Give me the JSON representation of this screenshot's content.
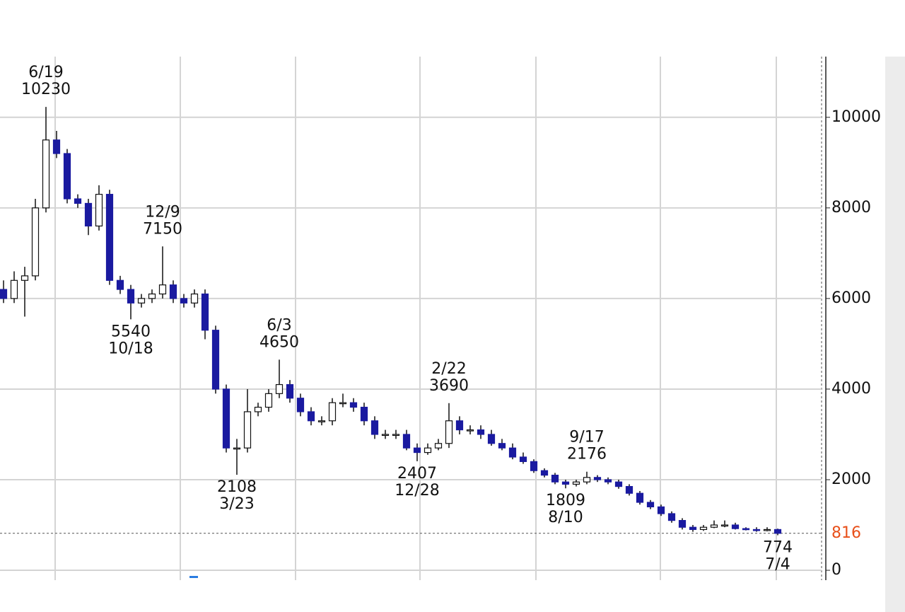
{
  "chart_data": {
    "type": "candlestick",
    "open": [
      6200,
      6000,
      6400,
      6500,
      8000,
      9500,
      9200,
      8200,
      8100,
      7600,
      8300,
      6400,
      6200,
      5900,
      6000,
      6100,
      6300,
      6000,
      5900,
      6100,
      5300,
      4000,
      2700,
      2700,
      3500,
      3600,
      3900,
      4100,
      3800,
      3500,
      3300,
      3300,
      3700,
      3700,
      3600,
      3300,
      3000,
      3000,
      3000,
      2700,
      2600,
      2700,
      2800,
      3300,
      3100,
      3100,
      3000,
      2800,
      2700,
      2500,
      2400,
      2200,
      2100,
      1950,
      1900,
      1950,
      2050,
      2000,
      1950,
      1850,
      1700,
      1500,
      1400,
      1250,
      1100,
      950,
      900,
      950,
      1000,
      1000,
      920,
      900,
      880,
      900
    ],
    "high": [
      6400,
      6600,
      6700,
      8200,
      10230,
      9700,
      9300,
      8300,
      8200,
      8500,
      8400,
      6500,
      6300,
      6100,
      6200,
      7150,
      6400,
      6100,
      6200,
      6200,
      5400,
      4100,
      2900,
      4000,
      3700,
      4000,
      4650,
      4200,
      3900,
      3600,
      3400,
      3800,
      3900,
      3800,
      3700,
      3400,
      3100,
      3100,
      3100,
      2800,
      2800,
      2900,
      3690,
      3400,
      3200,
      3200,
      3100,
      2900,
      2800,
      2600,
      2450,
      2250,
      2150,
      2000,
      2000,
      2176,
      2100,
      2050,
      2000,
      1900,
      1750,
      1550,
      1450,
      1300,
      1150,
      1000,
      1000,
      1100,
      1100,
      1050,
      950,
      950,
      950,
      920
    ],
    "low": [
      5900,
      5900,
      5600,
      6400,
      7900,
      9100,
      8100,
      8000,
      7400,
      7500,
      6300,
      6100,
      5540,
      5800,
      5900,
      6000,
      5900,
      5800,
      5800,
      5100,
      3900,
      2600,
      2108,
      2600,
      3400,
      3500,
      3800,
      3700,
      3400,
      3200,
      3200,
      3200,
      3600,
      3500,
      3200,
      2900,
      2900,
      2900,
      2650,
      2407,
      2550,
      2650,
      2700,
      3000,
      3000,
      2900,
      2750,
      2650,
      2450,
      2350,
      2150,
      2050,
      1900,
      1809,
      1850,
      1900,
      1950,
      1900,
      1800,
      1650,
      1450,
      1350,
      1200,
      1050,
      900,
      850,
      870,
      930,
      950,
      900,
      880,
      850,
      860,
      774
    ],
    "close": [
      6000,
      6400,
      6500,
      8000,
      9500,
      9200,
      8200,
      8100,
      7600,
      8300,
      6400,
      6200,
      5900,
      6000,
      6100,
      6300,
      6000,
      5900,
      6100,
      5300,
      4000,
      2700,
      2700,
      3500,
      3600,
      3900,
      4100,
      3800,
      3500,
      3300,
      3300,
      3700,
      3700,
      3600,
      3300,
      3000,
      3000,
      3000,
      2700,
      2600,
      2700,
      2800,
      3300,
      3100,
      3100,
      3000,
      2800,
      2700,
      2500,
      2400,
      2200,
      2100,
      1950,
      1900,
      1950,
      2050,
      2000,
      1950,
      1850,
      1700,
      1500,
      1400,
      1250,
      1100,
      950,
      900,
      950,
      1000,
      1000,
      920,
      900,
      880,
      900,
      816
    ],
    "up_color": "#ffffff",
    "down_color": "#1a1aa0",
    "ylim": [
      -140,
      11340
    ],
    "yticks": [
      0,
      2000,
      4000,
      6000,
      8000,
      10000
    ],
    "grid": true,
    "last_price": 816,
    "last_price_color": "#e8501a",
    "annotations": [
      {
        "date": "6/19",
        "value": 10230
      },
      {
        "date": "10/18",
        "value": 5540
      },
      {
        "date": "12/9",
        "value": 7150
      },
      {
        "date": "3/23",
        "value": 2108
      },
      {
        "date": "6/3",
        "value": 4650
      },
      {
        "date": "12/28",
        "value": 2407
      },
      {
        "date": "2/22",
        "value": 3690
      },
      {
        "date": "8/10",
        "value": 1809
      },
      {
        "date": "9/17",
        "value": 2176
      },
      {
        "date": "7/4",
        "value": 774
      }
    ]
  }
}
